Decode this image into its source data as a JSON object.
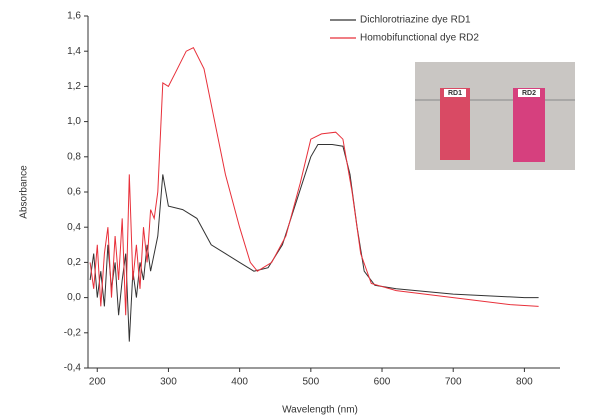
{
  "chart_data": {
    "type": "line",
    "x_label": "Wavelength (nm)",
    "y_label": "Absorbance",
    "xlim": [
      187,
      850
    ],
    "ylim": [
      -0.4,
      1.6
    ],
    "xticks": [
      200,
      300,
      400,
      500,
      600,
      700,
      800
    ],
    "yticks": [
      {
        "value": -0.4,
        "label": "-0,4"
      },
      {
        "value": -0.2,
        "label": "-0,2"
      },
      {
        "value": 0,
        "label": "0,0"
      },
      {
        "value": 0.2,
        "label": "0,2"
      },
      {
        "value": 0.4,
        "label": "0,4"
      },
      {
        "value": 0.6,
        "label": "0,6"
      },
      {
        "value": 0.8,
        "label": "0,8"
      },
      {
        "value": 1.0,
        "label": "1,0"
      },
      {
        "value": 1.2,
        "label": "1,2"
      },
      {
        "value": 1.4,
        "label": "1,4"
      },
      {
        "value": 1.6,
        "label": "1,6"
      }
    ],
    "annotations": [
      "RD1",
      "RD2"
    ],
    "series": [
      {
        "name": "Dichlorotriazine dye RD1",
        "color": "#333333",
        "x": [
          190,
          195,
          200,
          205,
          210,
          215,
          220,
          225,
          230,
          235,
          240,
          245,
          250,
          255,
          260,
          265,
          270,
          275,
          280,
          285,
          292,
          300,
          320,
          340,
          360,
          380,
          400,
          420,
          440,
          460,
          480,
          500,
          510,
          530,
          545,
          555,
          565,
          575,
          590,
          620,
          700,
          800,
          820
        ],
        "values": [
          0.1,
          0.25,
          0.0,
          0.15,
          -0.05,
          0.3,
          0.05,
          0.2,
          -0.1,
          0.1,
          0.25,
          -0.25,
          0.15,
          0.0,
          0.2,
          0.1,
          0.3,
          0.15,
          0.25,
          0.35,
          0.7,
          0.52,
          0.5,
          0.45,
          0.3,
          0.25,
          0.2,
          0.15,
          0.17,
          0.3,
          0.55,
          0.8,
          0.87,
          0.87,
          0.86,
          0.7,
          0.4,
          0.15,
          0.07,
          0.05,
          0.02,
          0.0,
          0.0
        ]
      },
      {
        "name": "Homobifunctional dye RD2",
        "color": "#e8303a",
        "x": [
          190,
          195,
          200,
          205,
          210,
          215,
          220,
          225,
          230,
          235,
          240,
          245,
          250,
          255,
          260,
          265,
          270,
          275,
          280,
          285,
          292,
          300,
          310,
          325,
          335,
          350,
          365,
          380,
          400,
          415,
          425,
          445,
          465,
          485,
          500,
          515,
          535,
          545,
          558,
          570,
          585,
          620,
          700,
          780,
          820
        ],
        "values": [
          0.2,
          0.05,
          0.3,
          -0.05,
          0.25,
          0.4,
          0.0,
          0.35,
          0.1,
          0.45,
          -0.1,
          0.7,
          0.1,
          0.3,
          0.05,
          0.4,
          0.2,
          0.5,
          0.45,
          0.6,
          1.22,
          1.2,
          1.28,
          1.4,
          1.42,
          1.3,
          1.0,
          0.7,
          0.4,
          0.2,
          0.15,
          0.2,
          0.35,
          0.65,
          0.9,
          0.93,
          0.94,
          0.9,
          0.6,
          0.25,
          0.08,
          0.04,
          0.0,
          -0.04,
          -0.05
        ]
      }
    ]
  }
}
